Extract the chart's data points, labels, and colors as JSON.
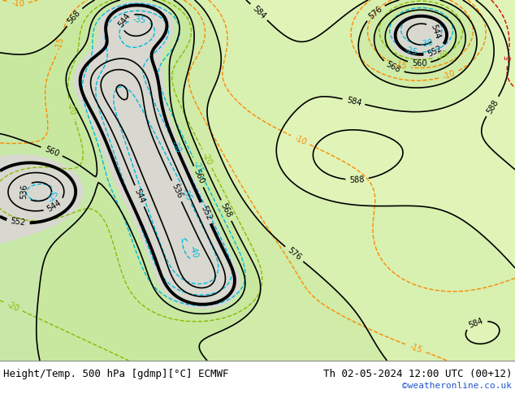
{
  "title_left": "Height/Temp. 500 hPa [gdmp][°C] ECMWF",
  "title_right": "Th 02-05-2024 12:00 UTC (00+12)",
  "watermark": "©weatheronline.co.uk",
  "bg_map": "#f0ede8",
  "bg_land_gray": "#c8c8c8",
  "bg_land_green": "#c8e8a0",
  "bg_bottom": "#ffffff",
  "title_fontsize": 9,
  "watermark_color": "#2255cc",
  "text_color": "#000000",
  "geo_contour_color": "#000000",
  "temp_cold_color": "#00b8e0",
  "temp_yg_color": "#88bb00",
  "temp_warm_color": "#ff8800",
  "temp_red_color": "#dd0000"
}
